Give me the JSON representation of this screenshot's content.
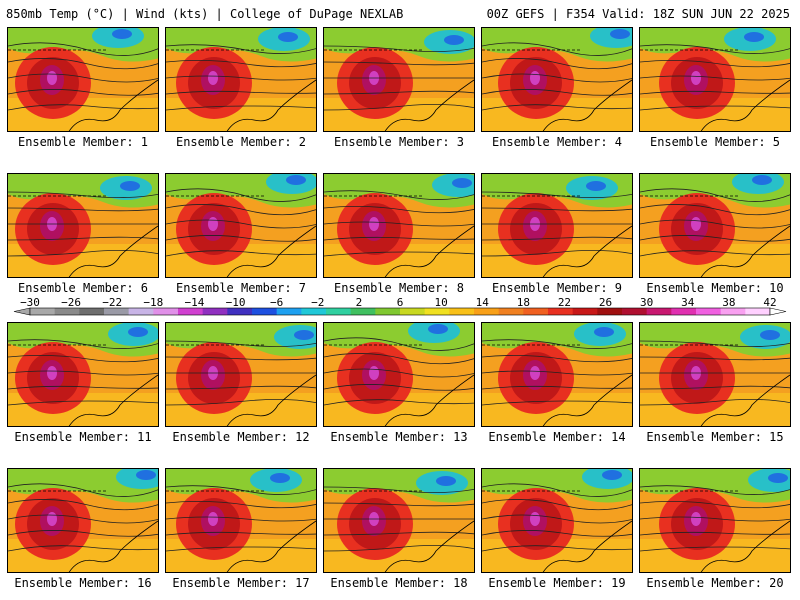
{
  "header": {
    "left": "850mb Temp (°C) | Wind (kts) | College of DuPage NEXLAB",
    "right": "00Z GEFS | F354 Valid: 18Z SUN JUN 22 2025"
  },
  "members": [
    "Ensemble Member: 1",
    "Ensemble Member: 2",
    "Ensemble Member: 3",
    "Ensemble Member: 4",
    "Ensemble Member: 5",
    "Ensemble Member: 6",
    "Ensemble Member: 7",
    "Ensemble Member: 8",
    "Ensemble Member: 9",
    "Ensemble Member: 10",
    "Ensemble Member: 11",
    "Ensemble Member: 12",
    "Ensemble Member: 13",
    "Ensemble Member: 14",
    "Ensemble Member: 15",
    "Ensemble Member: 16",
    "Ensemble Member: 17",
    "Ensemble Member: 18",
    "Ensemble Member: 19",
    "Ensemble Member: 20"
  ],
  "colorbar": {
    "labels": [
      "−30",
      "−26",
      "−22",
      "−18",
      "−14",
      "−10",
      "−6",
      "−2",
      "2",
      "6",
      "10",
      "14",
      "18",
      "22",
      "26",
      "30",
      "34",
      "38",
      "42"
    ],
    "colors": [
      "#a8a8a8",
      "#8a8a8a",
      "#6e6e6e",
      "#9a9aa6",
      "#c8b4e6",
      "#e090e8",
      "#d040d0",
      "#9030c0",
      "#4030c0",
      "#1e50e0",
      "#1ea0f0",
      "#20c8d8",
      "#30d0a0",
      "#40c060",
      "#80c830",
      "#c8d820",
      "#f0e020",
      "#f8c018",
      "#f8a018",
      "#f08020",
      "#f06020",
      "#e83020",
      "#c81818",
      "#a01010",
      "#b01030",
      "#c81870",
      "#e030b0",
      "#f060e0",
      "#f8a0f0",
      "#ffd0ff"
    ]
  }
}
